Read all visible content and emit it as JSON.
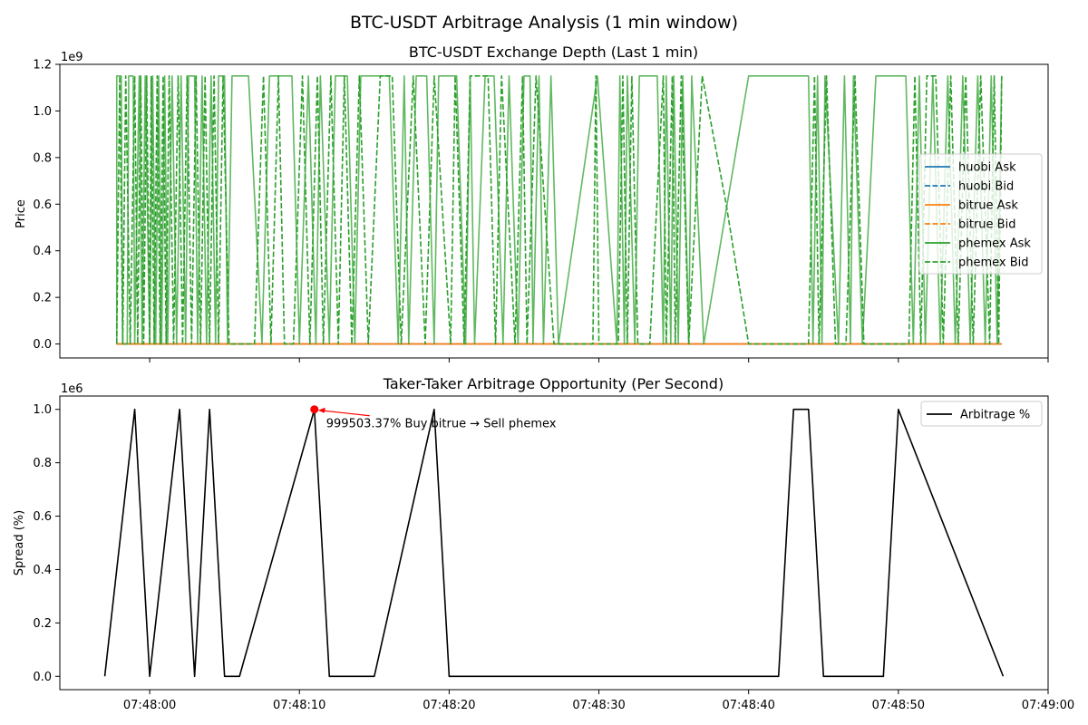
{
  "figure": {
    "suptitle": "BTC-USDT Arbitrage Analysis (1 min window)"
  },
  "chart_data": [
    {
      "type": "line",
      "title": "BTC-USDT Exchange Depth (Last 1 min)",
      "xlabel": "",
      "ylabel": "Price",
      "offset_text": "1e9",
      "ylim": [
        -0.06,
        1.2
      ],
      "yticks": [
        0.0,
        0.2,
        0.4,
        0.6,
        0.8,
        1.0,
        1.2
      ],
      "ytick_labels": [
        "0.0",
        "0.2",
        "0.4",
        "0.6",
        "0.8",
        "1.0",
        "1.2"
      ],
      "xlim_seconds": [
        -6,
        60
      ],
      "xticks_seconds": [
        0,
        10,
        20,
        30,
        40,
        50,
        60
      ],
      "legend_position": "center-right",
      "series": [
        {
          "name": "huobi Ask",
          "color": "#1f77b4",
          "dash": "solid",
          "values": [
            [
              -2.2,
              0.0
            ],
            [
              56.9,
              0.0
            ]
          ]
        },
        {
          "name": "huobi Bid",
          "color": "#1f77b4",
          "dash": "dashed",
          "values": [
            [
              -2.2,
              0.0
            ],
            [
              56.9,
              0.0
            ]
          ]
        },
        {
          "name": "bitrue Ask",
          "color": "#ff7f0e",
          "dash": "solid",
          "values": [
            [
              -2.2,
              0.0
            ],
            [
              56.9,
              0.0
            ]
          ]
        },
        {
          "name": "bitrue Bid",
          "color": "#ff7f0e",
          "dash": "dashed",
          "values": [
            [
              -2.2,
              0.0
            ],
            [
              56.9,
              0.0
            ]
          ]
        },
        {
          "name": "phemex Ask",
          "color": "#2ca02c",
          "dash": "solid",
          "values": [
            [
              -2.2,
              0.0
            ],
            [
              -2.2,
              1.15
            ],
            [
              -1.9,
              1.15
            ],
            [
              -1.8,
              0.0
            ],
            [
              -1.5,
              0.0
            ],
            [
              -1.4,
              1.15
            ],
            [
              -1.1,
              1.15
            ],
            [
              -1.0,
              0.0
            ],
            [
              -0.7,
              1.15
            ],
            [
              -0.5,
              0.0
            ],
            [
              -0.3,
              1.15
            ],
            [
              0.0,
              0.0
            ],
            [
              0.2,
              1.15
            ],
            [
              0.4,
              0.0
            ],
            [
              0.6,
              1.15
            ],
            [
              0.8,
              0.0
            ],
            [
              1.0,
              1.15
            ],
            [
              1.2,
              0.0
            ],
            [
              1.5,
              1.15
            ],
            [
              1.8,
              0.0
            ],
            [
              2.1,
              1.15
            ],
            [
              2.4,
              0.0
            ],
            [
              2.6,
              1.15
            ],
            [
              3.0,
              1.15
            ],
            [
              3.2,
              0.0
            ],
            [
              3.5,
              1.15
            ],
            [
              3.8,
              0.0
            ],
            [
              4.1,
              1.15
            ],
            [
              4.4,
              0.0
            ],
            [
              4.6,
              1.15
            ],
            [
              5.0,
              1.15
            ],
            [
              5.2,
              0.0
            ],
            [
              5.5,
              1.15
            ],
            [
              6.6,
              1.15
            ],
            [
              7.5,
              0.0
            ],
            [
              8.0,
              1.15
            ],
            [
              9.5,
              1.15
            ],
            [
              10.0,
              0.0
            ],
            [
              10.6,
              1.15
            ],
            [
              11.1,
              0.0
            ],
            [
              11.4,
              1.15
            ],
            [
              12.0,
              0.0
            ],
            [
              12.4,
              1.15
            ],
            [
              13.2,
              1.15
            ],
            [
              13.7,
              0.0
            ],
            [
              14.1,
              1.15
            ],
            [
              15.0,
              1.15
            ],
            [
              16.0,
              1.15
            ],
            [
              16.6,
              0.0
            ],
            [
              17.0,
              1.15
            ],
            [
              17.3,
              0.0
            ],
            [
              17.8,
              1.15
            ],
            [
              18.5,
              1.15
            ],
            [
              19.0,
              0.0
            ],
            [
              19.3,
              1.15
            ],
            [
              20.5,
              1.15
            ],
            [
              21.1,
              0.0
            ],
            [
              21.4,
              1.15
            ],
            [
              21.7,
              0.0
            ],
            [
              22.4,
              1.15
            ],
            [
              23.0,
              1.15
            ],
            [
              23.6,
              0.0
            ],
            [
              24.0,
              1.15
            ],
            [
              24.6,
              0.0
            ],
            [
              25.0,
              1.15
            ],
            [
              25.4,
              1.15
            ],
            [
              25.6,
              0.0
            ],
            [
              26.0,
              1.15
            ],
            [
              26.3,
              0.0
            ],
            [
              26.8,
              1.15
            ],
            [
              27.3,
              0.0
            ],
            [
              29.9,
              1.15
            ],
            [
              31.2,
              0.0
            ],
            [
              31.4,
              1.15
            ],
            [
              31.7,
              0.0
            ],
            [
              31.9,
              1.15
            ],
            [
              32.4,
              0.0
            ],
            [
              32.7,
              1.15
            ],
            [
              33.9,
              1.15
            ],
            [
              34.3,
              0.0
            ],
            [
              34.5,
              1.15
            ],
            [
              34.8,
              0.0
            ],
            [
              35.0,
              1.15
            ],
            [
              35.3,
              0.0
            ],
            [
              35.6,
              1.15
            ],
            [
              36.0,
              0.0
            ],
            [
              36.2,
              1.15
            ],
            [
              37.0,
              0.0
            ],
            [
              40.0,
              1.15
            ],
            [
              44.0,
              1.15
            ],
            [
              44.3,
              0.0
            ],
            [
              44.6,
              1.15
            ],
            [
              44.9,
              0.0
            ],
            [
              45.1,
              1.15
            ],
            [
              46.0,
              0.0
            ],
            [
              46.4,
              1.15
            ],
            [
              46.8,
              0.0
            ],
            [
              47.0,
              1.15
            ],
            [
              47.6,
              0.0
            ],
            [
              48.5,
              1.15
            ],
            [
              50.5,
              1.15
            ],
            [
              51.0,
              0.0
            ],
            [
              51.4,
              1.15
            ],
            [
              51.8,
              0.0
            ],
            [
              52.3,
              1.15
            ],
            [
              52.8,
              0.0
            ],
            [
              53.3,
              1.15
            ],
            [
              53.8,
              0.0
            ],
            [
              54.3,
              1.15
            ],
            [
              54.8,
              0.0
            ],
            [
              55.3,
              1.15
            ],
            [
              55.8,
              0.0
            ],
            [
              56.2,
              1.15
            ],
            [
              56.6,
              0.0
            ],
            [
              56.9,
              1.15
            ]
          ]
        },
        {
          "name": "phemex Bid",
          "color": "#2ca02c",
          "dash": "dashed",
          "values": [
            [
              -2.2,
              0.0
            ],
            [
              -2.0,
              1.15
            ],
            [
              -1.8,
              0.0
            ],
            [
              -1.6,
              1.15
            ],
            [
              -1.3,
              0.0
            ],
            [
              -1.0,
              1.15
            ],
            [
              -0.8,
              0.0
            ],
            [
              -0.6,
              1.15
            ],
            [
              -0.4,
              0.0
            ],
            [
              -0.2,
              1.15
            ],
            [
              0.0,
              0.0
            ],
            [
              0.1,
              1.15
            ],
            [
              0.3,
              0.0
            ],
            [
              0.5,
              1.15
            ],
            [
              0.7,
              0.0
            ],
            [
              0.9,
              1.15
            ],
            [
              1.1,
              0.0
            ],
            [
              1.3,
              1.15
            ],
            [
              1.6,
              0.0
            ],
            [
              1.9,
              1.15
            ],
            [
              2.2,
              0.0
            ],
            [
              2.5,
              1.15
            ],
            [
              2.8,
              0.0
            ],
            [
              3.1,
              1.15
            ],
            [
              3.4,
              0.0
            ],
            [
              3.7,
              1.15
            ],
            [
              4.0,
              0.0
            ],
            [
              4.3,
              1.15
            ],
            [
              4.6,
              0.0
            ],
            [
              4.9,
              1.15
            ],
            [
              5.3,
              0.0
            ],
            [
              5.8,
              0.0
            ],
            [
              7.0,
              0.0
            ],
            [
              7.6,
              1.15
            ],
            [
              8.1,
              0.0
            ],
            [
              8.6,
              1.15
            ],
            [
              9.0,
              0.0
            ],
            [
              9.6,
              0.0
            ],
            [
              10.2,
              1.15
            ],
            [
              10.7,
              0.0
            ],
            [
              11.2,
              1.15
            ],
            [
              11.6,
              0.0
            ],
            [
              12.1,
              1.15
            ],
            [
              12.6,
              0.0
            ],
            [
              13.0,
              1.15
            ],
            [
              13.5,
              0.0
            ],
            [
              14.0,
              1.15
            ],
            [
              14.6,
              0.0
            ],
            [
              15.4,
              1.15
            ],
            [
              16.2,
              1.15
            ],
            [
              16.8,
              0.0
            ],
            [
              17.6,
              1.15
            ],
            [
              18.4,
              0.0
            ],
            [
              19.0,
              1.15
            ],
            [
              20.1,
              0.0
            ],
            [
              20.4,
              1.15
            ],
            [
              21.0,
              0.0
            ],
            [
              21.4,
              1.15
            ],
            [
              22.6,
              1.15
            ],
            [
              23.1,
              0.0
            ],
            [
              23.5,
              1.15
            ],
            [
              24.4,
              0.0
            ],
            [
              24.9,
              1.15
            ],
            [
              25.2,
              0.0
            ],
            [
              25.8,
              1.15
            ],
            [
              27.0,
              0.0
            ],
            [
              29.6,
              0.0
            ],
            [
              29.8,
              1.15
            ],
            [
              30.0,
              0.0
            ],
            [
              31.3,
              0.0
            ],
            [
              31.6,
              1.15
            ],
            [
              31.9,
              0.0
            ],
            [
              32.2,
              1.15
            ],
            [
              32.6,
              0.0
            ],
            [
              33.4,
              0.0
            ],
            [
              34.3,
              1.15
            ],
            [
              34.5,
              0.0
            ],
            [
              34.9,
              1.15
            ],
            [
              35.1,
              0.0
            ],
            [
              35.5,
              1.15
            ],
            [
              36.0,
              0.0
            ],
            [
              36.9,
              1.15
            ],
            [
              38.5,
              0.6
            ],
            [
              40.0,
              0.0
            ],
            [
              41.5,
              0.0
            ],
            [
              44.0,
              0.0
            ],
            [
              44.4,
              1.15
            ],
            [
              44.7,
              0.0
            ],
            [
              45.2,
              1.15
            ],
            [
              45.8,
              0.0
            ],
            [
              46.5,
              0.0
            ],
            [
              47.1,
              1.15
            ],
            [
              47.7,
              0.0
            ],
            [
              48.2,
              0.0
            ],
            [
              48.6,
              0.0
            ],
            [
              50.7,
              0.0
            ],
            [
              51.1,
              1.15
            ],
            [
              51.5,
              0.0
            ],
            [
              51.9,
              1.15
            ],
            [
              52.5,
              1.15
            ],
            [
              53.0,
              0.0
            ],
            [
              53.5,
              1.15
            ],
            [
              54.0,
              0.0
            ],
            [
              54.5,
              1.15
            ],
            [
              55.0,
              0.0
            ],
            [
              55.5,
              1.15
            ],
            [
              56.1,
              0.0
            ],
            [
              56.4,
              1.15
            ],
            [
              56.7,
              0.0
            ],
            [
              56.9,
              1.15
            ]
          ]
        }
      ]
    },
    {
      "type": "line",
      "title": "Taker-Taker Arbitrage Opportunity (Per Second)",
      "xlabel": "",
      "ylabel": "Spread (%)",
      "offset_text": "1e6",
      "ylim": [
        -0.05,
        1.05
      ],
      "yticks": [
        0.0,
        0.2,
        0.4,
        0.6,
        0.8,
        1.0
      ],
      "ytick_labels": [
        "0.0",
        "0.2",
        "0.4",
        "0.6",
        "0.8",
        "1.0"
      ],
      "xlim_seconds": [
        -6,
        60
      ],
      "xticks_seconds": [
        0,
        10,
        20,
        30,
        40,
        50,
        60
      ],
      "xtick_labels": [
        "07:48:00",
        "07:48:10",
        "07:48:20",
        "07:48:30",
        "07:48:40",
        "07:48:50",
        "07:49:00"
      ],
      "legend_position": "top-right",
      "series": [
        {
          "name": "Arbitrage %",
          "color": "#000000",
          "values": [
            [
              -3,
              0.0
            ],
            [
              -1,
              1.0
            ],
            [
              0,
              0.0
            ],
            [
              2,
              1.0
            ],
            [
              3,
              0.0
            ],
            [
              4,
              1.0
            ],
            [
              5,
              0.0
            ],
            [
              6,
              0.0
            ],
            [
              11,
              1.0
            ],
            [
              12,
              0.0
            ],
            [
              15,
              0.0
            ],
            [
              19,
              1.0
            ],
            [
              20,
              0.0
            ],
            [
              42,
              0.0
            ],
            [
              43,
              1.0
            ],
            [
              44,
              1.0
            ],
            [
              45,
              0.0
            ],
            [
              49,
              0.0
            ],
            [
              50,
              1.0
            ],
            [
              57,
              0.0
            ]
          ]
        }
      ],
      "annotation": {
        "text": "999503.37% Buy bitrue → Sell phemex",
        "point": [
          11,
          1.0
        ],
        "marker_color": "#ff0000",
        "arrow_color": "#ff0000"
      }
    }
  ]
}
